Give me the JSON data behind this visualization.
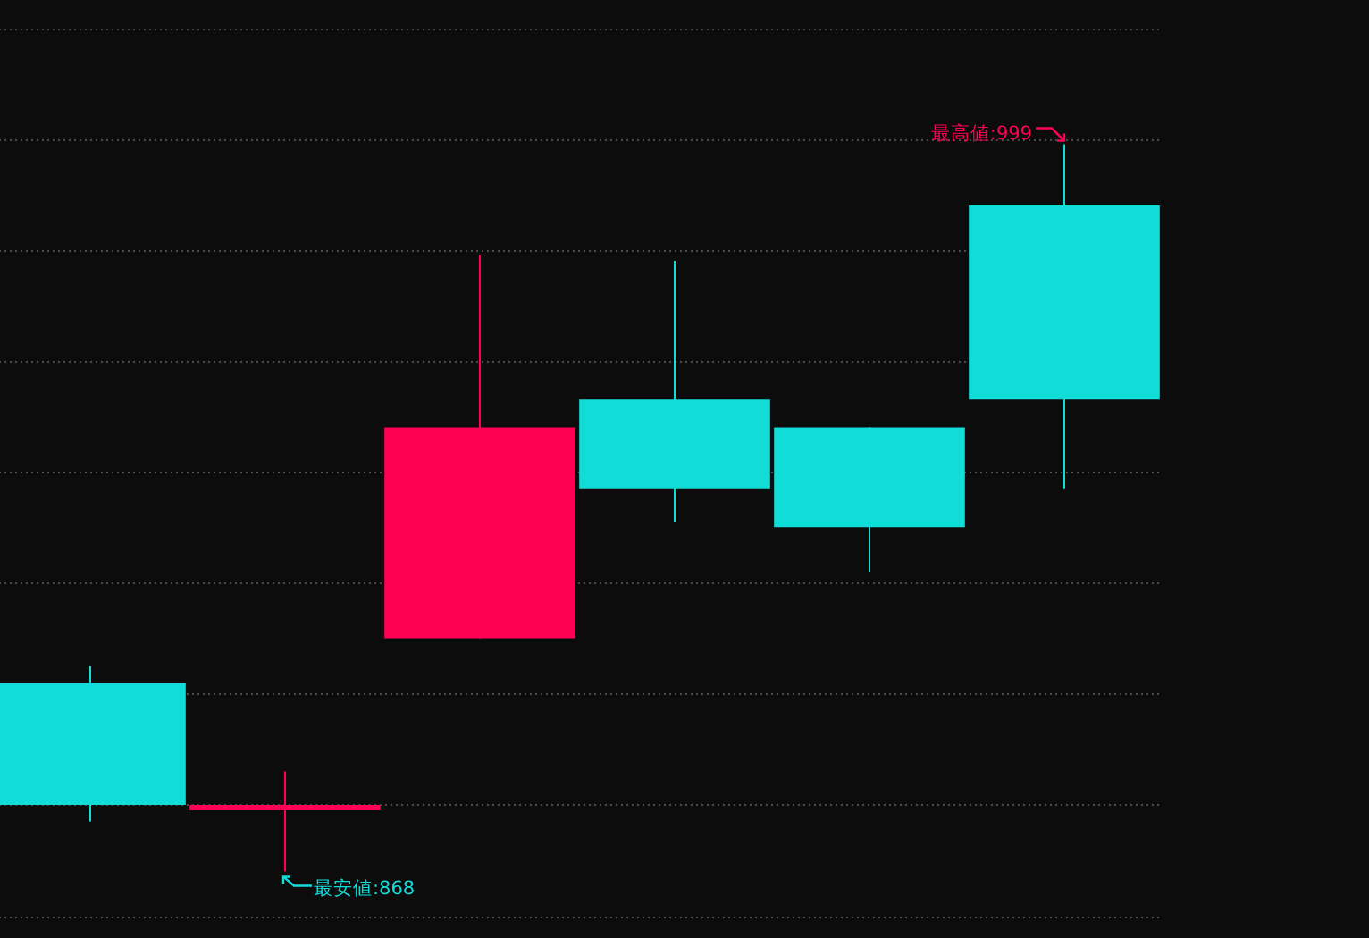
{
  "chart_data": {
    "type": "candlestick",
    "categories": [
      null,
      null,
      null,
      null,
      null,
      null
    ],
    "ohlc": [
      [
        902,
        905,
        877,
        880
      ],
      [
        879,
        886,
        868,
        880
      ],
      [
        910,
        979,
        910,
        948
      ],
      [
        953,
        978,
        931,
        937
      ],
      [
        948,
        948,
        922,
        930
      ],
      [
        988,
        999,
        937,
        953
      ]
    ],
    "colors": [
      "#12dcd8",
      "#ff0055",
      "#ff0055",
      "#12dcd8",
      "#12dcd8",
      "#12dcd8"
    ],
    "ylim": [
      856,
      1025
    ],
    "yticks": [
      {
        "value": 860,
        "label": null
      },
      {
        "value": 880,
        "label": null
      },
      {
        "value": 900,
        "label": null
      },
      {
        "value": 920,
        "label": null
      },
      {
        "value": 940,
        "label": null
      },
      {
        "value": 960,
        "label": null
      },
      {
        "value": 980,
        "label": null
      },
      {
        "value": 1000,
        "label": null
      },
      {
        "value": 1020,
        "label": null
      }
    ],
    "grid": "y",
    "annotations": [
      "最高値:999",
      "最安値:868"
    ]
  }
}
